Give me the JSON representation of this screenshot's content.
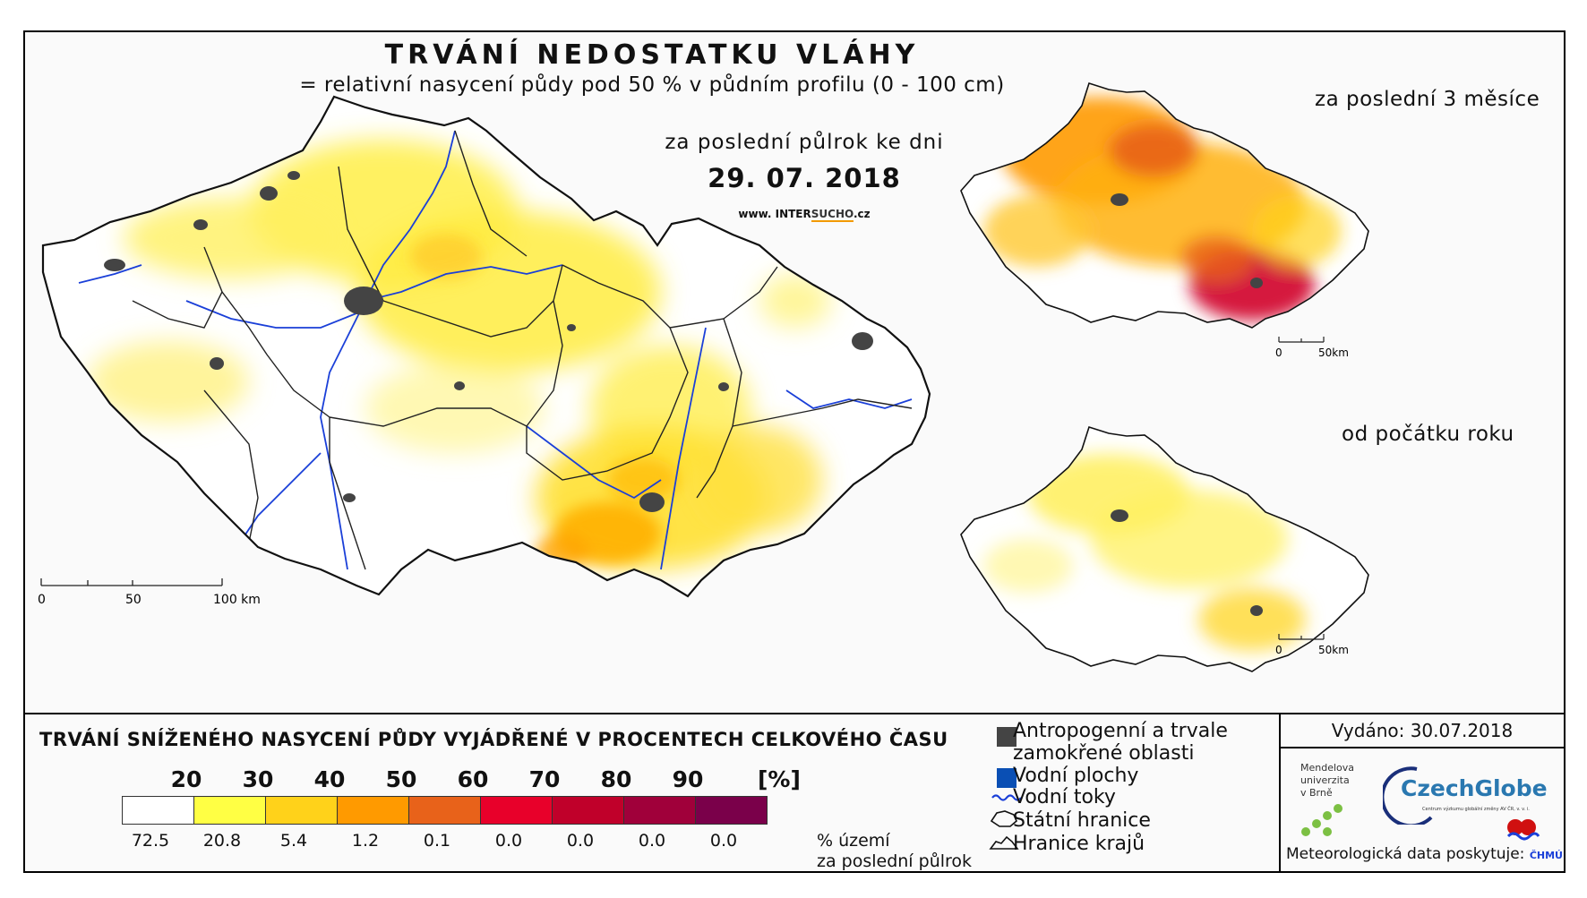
{
  "header": {
    "title": "TRVÁNÍ NEDOSTATKU VLÁHY",
    "subtitle": "= relativní nasycení půdy pod 50 % v půdním profilu (0 - 100 cm)",
    "period": "za poslední půlrok ke dni",
    "date": "29. 07. 2018",
    "website_prefix": "www. INTER",
    "website_highlight": "SUCHO",
    "website_suffix": ".cz"
  },
  "insets": {
    "top_title": "za poslední 3 měsíce",
    "bottom_title": "od počátku roku",
    "scale_zero": "0",
    "scale_end": "50km"
  },
  "main_scale": {
    "zero": "0",
    "mid": "50",
    "end": "100 km"
  },
  "legend": {
    "title": "TRVÁNÍ SNÍŽENÉHO NASYCENÍ PŮDY VYJÁDŘENÉ V PROCENTECH CELKOVÉHO ČASU",
    "unit": "[%]",
    "thresholds": [
      "20",
      "30",
      "40",
      "50",
      "60",
      "70",
      "80",
      "90"
    ],
    "classes": [
      {
        "color": "#ffffff",
        "share": "72.5"
      },
      {
        "color": "#ffff44",
        "share": "20.8"
      },
      {
        "color": "#ffd21a",
        "share": "5.4"
      },
      {
        "color": "#ff9a00",
        "share": "1.2"
      },
      {
        "color": "#e8621a",
        "share": "0.1"
      },
      {
        "color": "#e8002a",
        "share": "0.0"
      },
      {
        "color": "#c0002a",
        "share": "0.0"
      },
      {
        "color": "#a0003a",
        "share": "0.0"
      },
      {
        "color": "#7a004a",
        "share": "0.0"
      }
    ],
    "share_note_line1": "% území",
    "share_note_line2": "za poslední půlrok"
  },
  "map_legend": {
    "urban_line1": "Antropogenní a trvale",
    "urban_line2": "zamokřené oblasti",
    "water": "Vodní plochy",
    "rivers": "Vodní toky",
    "border": "Státní hranice",
    "regions": "Hranice krajů",
    "urban_color": "#444444",
    "water_color": "#0a4fb4",
    "river_color": "#1a3fd8"
  },
  "credits": {
    "issued": "Vydáno: 30.07.2018",
    "mendel_line1": "Mendelova",
    "mendel_line2": "univerzita",
    "mendel_line3": "v Brně",
    "czechglobe": "CzechGlobe",
    "czechglobe_sub": "Centrum výzkumu globální změny AV ČR, v. v. i.",
    "meteo": "Meteorologická data poskytuje:",
    "chmu": "ČHMÚ"
  }
}
